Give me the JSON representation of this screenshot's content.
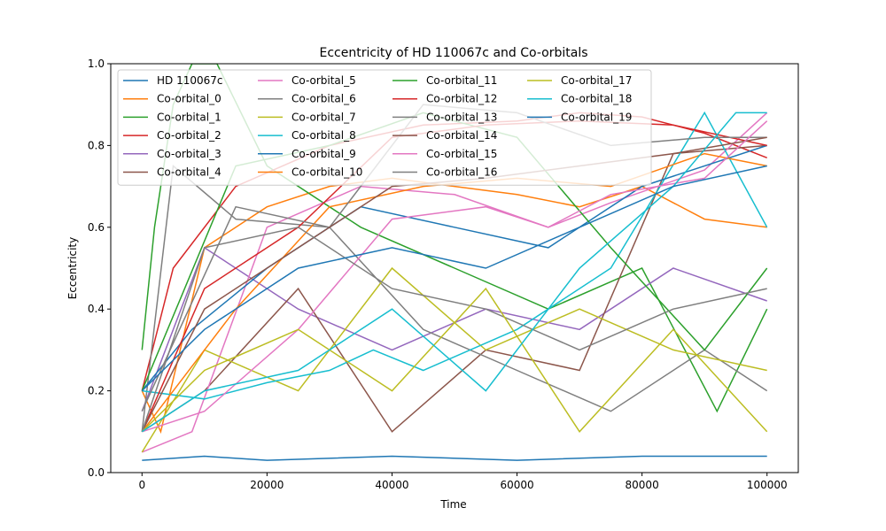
{
  "chart_data": {
    "type": "line",
    "title": "Eccentricity of HD 110067c and Co-orbitals",
    "xlabel": "Time",
    "ylabel": "Eccentricity",
    "xlim": [
      -5000,
      105000
    ],
    "ylim": [
      0.0,
      1.0
    ],
    "x_ticks": [
      0,
      20000,
      40000,
      60000,
      80000,
      100000
    ],
    "x_tick_labels": [
      "0",
      "20000",
      "40000",
      "60000",
      "80000",
      "100000"
    ],
    "y_ticks": [
      0.0,
      0.2,
      0.4,
      0.6,
      0.8,
      1.0
    ],
    "y_tick_labels": [
      "0.0",
      "0.2",
      "0.4",
      "0.6",
      "0.8",
      "1.0"
    ],
    "grid": false,
    "legend": {
      "placement": "upper-left",
      "columns": 4
    },
    "series": [
      {
        "name": "HD 110067c",
        "color": "#1f77b4",
        "points": [
          [
            0,
            0.03
          ],
          [
            10000,
            0.04
          ],
          [
            20000,
            0.03
          ],
          [
            40000,
            0.04
          ],
          [
            60000,
            0.03
          ],
          [
            80000,
            0.04
          ],
          [
            100000,
            0.04
          ]
        ]
      },
      {
        "name": "Co-orbital_0",
        "color": "#ff7f0e",
        "points": [
          [
            0,
            0.2
          ],
          [
            3000,
            0.1
          ],
          [
            10000,
            0.55
          ],
          [
            20000,
            0.65
          ],
          [
            30000,
            0.7
          ],
          [
            40000,
            0.72
          ],
          [
            50000,
            0.7
          ],
          [
            60000,
            0.68
          ],
          [
            70000,
            0.65
          ],
          [
            80000,
            0.7
          ],
          [
            90000,
            0.62
          ],
          [
            100000,
            0.6
          ]
        ]
      },
      {
        "name": "Co-orbital_1",
        "color": "#2ca02c",
        "points": [
          [
            0,
            0.3
          ],
          [
            2000,
            0.6
          ],
          [
            5000,
            0.9
          ],
          [
            8000,
            1.0
          ],
          [
            12000,
            1.0
          ],
          [
            20000,
            0.75
          ],
          [
            35000,
            0.6
          ],
          [
            50000,
            0.5
          ],
          [
            65000,
            0.4
          ],
          [
            80000,
            0.5
          ],
          [
            92000,
            0.15
          ],
          [
            100000,
            0.4
          ]
        ]
      },
      {
        "name": "Co-orbital_2",
        "color": "#d62728",
        "points": [
          [
            0,
            0.2
          ],
          [
            5000,
            0.5
          ],
          [
            15000,
            0.7
          ],
          [
            30000,
            0.8
          ],
          [
            45000,
            0.85
          ],
          [
            60000,
            0.86
          ],
          [
            70000,
            0.88
          ],
          [
            80000,
            0.87
          ],
          [
            90000,
            0.83
          ],
          [
            100000,
            0.77
          ]
        ]
      },
      {
        "name": "Co-orbital_3",
        "color": "#9467bd",
        "points": [
          [
            0,
            0.15
          ],
          [
            10000,
            0.55
          ],
          [
            25000,
            0.4
          ],
          [
            40000,
            0.3
          ],
          [
            55000,
            0.4
          ],
          [
            70000,
            0.35
          ],
          [
            85000,
            0.5
          ],
          [
            100000,
            0.42
          ]
        ]
      },
      {
        "name": "Co-orbital_4",
        "color": "#8c564b",
        "points": [
          [
            0,
            0.1
          ],
          [
            10000,
            0.2
          ],
          [
            25000,
            0.45
          ],
          [
            40000,
            0.1
          ],
          [
            55000,
            0.3
          ],
          [
            70000,
            0.25
          ],
          [
            85000,
            0.78
          ],
          [
            100000,
            0.8
          ]
        ]
      },
      {
        "name": "Co-orbital_5",
        "color": "#e377c2",
        "points": [
          [
            0,
            0.05
          ],
          [
            8000,
            0.1
          ],
          [
            20000,
            0.6
          ],
          [
            35000,
            0.7
          ],
          [
            50000,
            0.68
          ],
          [
            65000,
            0.6
          ],
          [
            75000,
            0.66
          ],
          [
            90000,
            0.74
          ],
          [
            100000,
            0.88
          ]
        ]
      },
      {
        "name": "Co-orbital_6",
        "color": "#7f7f7f",
        "points": [
          [
            0,
            0.1
          ],
          [
            5000,
            0.75
          ],
          [
            15000,
            0.62
          ],
          [
            30000,
            0.6
          ],
          [
            45000,
            0.35
          ],
          [
            60000,
            0.25
          ],
          [
            75000,
            0.15
          ],
          [
            90000,
            0.3
          ],
          [
            100000,
            0.2
          ]
        ]
      },
      {
        "name": "Co-orbital_7",
        "color": "#bcbd22",
        "points": [
          [
            0,
            0.05
          ],
          [
            10000,
            0.3
          ],
          [
            25000,
            0.2
          ],
          [
            40000,
            0.5
          ],
          [
            55000,
            0.3
          ],
          [
            70000,
            0.4
          ],
          [
            85000,
            0.3
          ],
          [
            100000,
            0.25
          ]
        ]
      },
      {
        "name": "Co-orbital_8",
        "color": "#17becf",
        "points": [
          [
            0,
            0.2
          ],
          [
            10000,
            0.18
          ],
          [
            20000,
            0.22
          ],
          [
            30000,
            0.25
          ],
          [
            37000,
            0.3
          ],
          [
            45000,
            0.25
          ],
          [
            60000,
            0.35
          ],
          [
            75000,
            0.5
          ],
          [
            90000,
            0.88
          ],
          [
            100000,
            0.6
          ]
        ]
      },
      {
        "name": "Co-orbital_9",
        "color": "#1f77b4",
        "points": [
          [
            0,
            0.2
          ],
          [
            8000,
            0.35
          ],
          [
            20000,
            0.5
          ],
          [
            35000,
            0.65
          ],
          [
            50000,
            0.6
          ],
          [
            65000,
            0.55
          ],
          [
            80000,
            0.7
          ],
          [
            100000,
            0.8
          ]
        ]
      },
      {
        "name": "Co-orbital_10",
        "color": "#ff7f0e",
        "points": [
          [
            0,
            0.1
          ],
          [
            15000,
            0.4
          ],
          [
            30000,
            0.65
          ],
          [
            45000,
            0.7
          ],
          [
            60000,
            0.72
          ],
          [
            75000,
            0.7
          ],
          [
            90000,
            0.78
          ],
          [
            100000,
            0.75
          ]
        ]
      },
      {
        "name": "Co-orbital_11",
        "color": "#2ca02c",
        "points": [
          [
            0,
            0.2
          ],
          [
            15000,
            0.75
          ],
          [
            30000,
            0.8
          ],
          [
            45000,
            0.88
          ],
          [
            60000,
            0.82
          ],
          [
            75000,
            0.55
          ],
          [
            90000,
            0.3
          ],
          [
            100000,
            0.5
          ]
        ]
      },
      {
        "name": "Co-orbital_12",
        "color": "#d62728",
        "points": [
          [
            0,
            0.1
          ],
          [
            10000,
            0.45
          ],
          [
            25000,
            0.6
          ],
          [
            40000,
            0.82
          ],
          [
            55000,
            0.85
          ],
          [
            70000,
            0.86
          ],
          [
            85000,
            0.85
          ],
          [
            100000,
            0.8
          ]
        ]
      },
      {
        "name": "Co-orbital_13",
        "color": "#7f7f7f",
        "points": [
          [
            0,
            0.15
          ],
          [
            15000,
            0.65
          ],
          [
            30000,
            0.6
          ],
          [
            45000,
            0.9
          ],
          [
            60000,
            0.88
          ],
          [
            75000,
            0.8
          ],
          [
            90000,
            0.82
          ],
          [
            100000,
            0.82
          ]
        ]
      },
      {
        "name": "Co-orbital_14",
        "color": "#8c564b",
        "points": [
          [
            0,
            0.1
          ],
          [
            10000,
            0.4
          ],
          [
            25000,
            0.55
          ],
          [
            40000,
            0.7
          ],
          [
            55000,
            0.72
          ],
          [
            70000,
            0.75
          ],
          [
            85000,
            0.78
          ],
          [
            100000,
            0.82
          ]
        ]
      },
      {
        "name": "Co-orbital_15",
        "color": "#e377c2",
        "points": [
          [
            0,
            0.1
          ],
          [
            10000,
            0.15
          ],
          [
            25000,
            0.35
          ],
          [
            40000,
            0.62
          ],
          [
            55000,
            0.65
          ],
          [
            65000,
            0.6
          ],
          [
            75000,
            0.68
          ],
          [
            90000,
            0.72
          ],
          [
            100000,
            0.86
          ]
        ]
      },
      {
        "name": "Co-orbital_16",
        "color": "#7f7f7f",
        "points": [
          [
            0,
            0.1
          ],
          [
            10000,
            0.55
          ],
          [
            25000,
            0.6
          ],
          [
            40000,
            0.45
          ],
          [
            55000,
            0.4
          ],
          [
            70000,
            0.3
          ],
          [
            85000,
            0.4
          ],
          [
            100000,
            0.45
          ]
        ]
      },
      {
        "name": "Co-orbital_17",
        "color": "#bcbd22",
        "points": [
          [
            0,
            0.1
          ],
          [
            10000,
            0.25
          ],
          [
            25000,
            0.35
          ],
          [
            40000,
            0.2
          ],
          [
            55000,
            0.45
          ],
          [
            70000,
            0.1
          ],
          [
            85000,
            0.35
          ],
          [
            100000,
            0.1
          ]
        ]
      },
      {
        "name": "Co-orbital_18",
        "color": "#17becf",
        "points": [
          [
            0,
            0.1
          ],
          [
            10000,
            0.2
          ],
          [
            25000,
            0.25
          ],
          [
            40000,
            0.4
          ],
          [
            55000,
            0.2
          ],
          [
            70000,
            0.5
          ],
          [
            85000,
            0.7
          ],
          [
            95000,
            0.88
          ],
          [
            100000,
            0.88
          ]
        ]
      },
      {
        "name": "Co-orbital_19",
        "color": "#1f77b4",
        "points": [
          [
            0,
            0.2
          ],
          [
            10000,
            0.35
          ],
          [
            25000,
            0.5
          ],
          [
            40000,
            0.55
          ],
          [
            55000,
            0.5
          ],
          [
            70000,
            0.6
          ],
          [
            85000,
            0.7
          ],
          [
            100000,
            0.75
          ]
        ]
      }
    ]
  }
}
